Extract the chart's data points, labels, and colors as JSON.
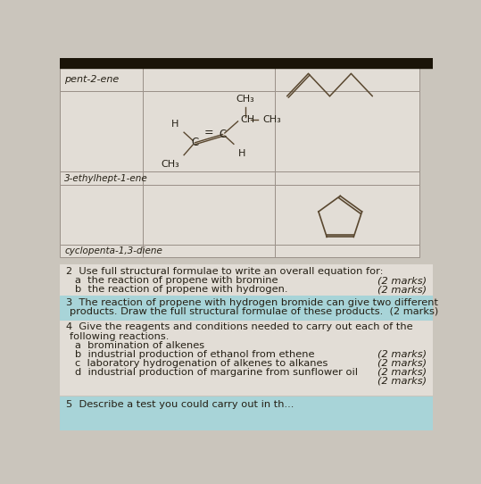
{
  "bg_color": "#cac5bc",
  "table_bg": "#d8d3ca",
  "cell_bg": "#e2ddd6",
  "highlight_bg": "#a8d4d8",
  "border_color": "#9a9088",
  "text_color": "#252015",
  "dark_bar": "#1a1408",
  "line_color": "#5a4830",
  "col0": 0,
  "col1": 120,
  "col2": 310,
  "col3": 520,
  "T": 14,
  "R1": 48,
  "R2": 165,
  "R3": 185,
  "R4": 272,
  "R5": 290,
  "qy": 300,
  "q2_lines": [
    "2  Use full structural formulae to write an overall equation for:",
    "a  the reaction of propene with bromine",
    "b  the reaction of propene with hydrogen."
  ],
  "q3_lines": [
    "3  The reaction of propene with hydrogen bromide can give two different",
    "   products. Draw the full structural formulae of these products.  (2 marks)"
  ],
  "q4_lines": [
    "4  Give the reagents and conditions needed to carry out each of the",
    "   following reactions.",
    "a  bromination of alkenes",
    "b  industrial production of ethanol from ethene",
    "c  laboratory hydrogenation of alkenes to alkanes",
    "d  industrial production of margarine from sunflower oil"
  ],
  "q5_lines": [
    "5  Describe a test you could carry out in th..."
  ],
  "marks_2a": "(2 marks)",
  "marks_2b": "(2 marks)",
  "marks_4b": "(2 marks)",
  "marks_4c": "(2 marks)",
  "marks_4d": "(2 marks)",
  "marks_4e": "(2 marks)"
}
